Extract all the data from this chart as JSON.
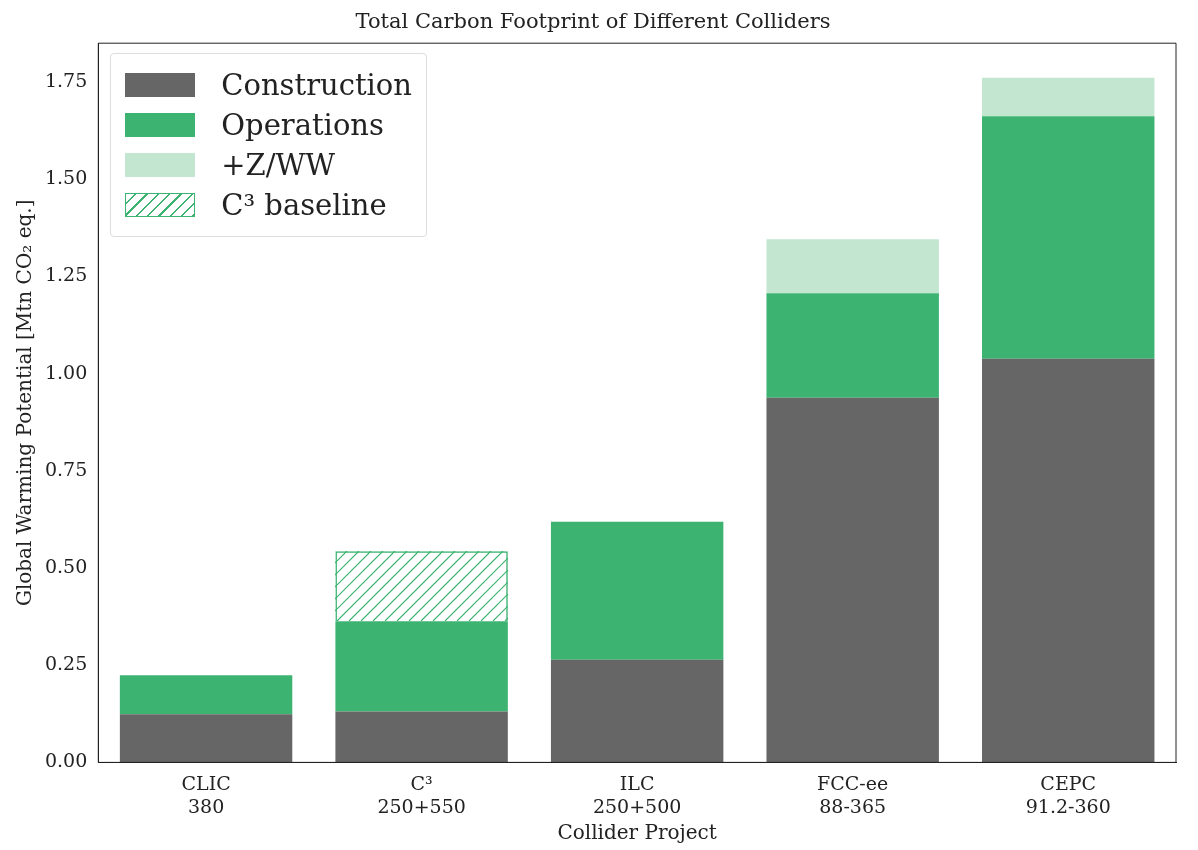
{
  "chart_data": {
    "type": "bar",
    "title": "Total Carbon Footprint of Different Colliders",
    "xlabel": "Collider Project",
    "ylabel": "Global Warming Potential [Mtn CO₂ eq.]",
    "categories": [
      "CLIC\n380",
      "C³\n250+550",
      "ILC\n250+500",
      "FCC-ee\n88-365",
      "CEPC\n91.2-360"
    ],
    "stacked": true,
    "series": [
      {
        "name": "Construction",
        "color": "#666666",
        "values": [
          0.124,
          0.131,
          0.264,
          0.938,
          1.038
        ]
      },
      {
        "name": "Operations",
        "color": "#3cb371",
        "values": [
          0.1,
          0.232,
          0.355,
          0.269,
          0.624
        ]
      },
      {
        "name": "+Z/WW",
        "color": "#c2e6d0",
        "values": [
          null,
          null,
          null,
          0.139,
          0.099
        ]
      },
      {
        "name": "C³ baseline",
        "color": "#3cb371",
        "values": [
          null,
          0.18,
          null,
          null,
          null
        ]
      }
    ],
    "ylim": [
      0,
      1.85
    ],
    "yticks": [
      {
        "value": 0,
        "label": "0.00"
      },
      {
        "value": 0.25,
        "label": "0.25"
      },
      {
        "value": 0.5,
        "label": "0.50"
      },
      {
        "value": 0.75,
        "label": "0.75"
      },
      {
        "value": 1,
        "label": "1.00"
      },
      {
        "value": 1.25,
        "label": "1.25"
      },
      {
        "value": 1.5,
        "label": "1.50"
      },
      {
        "value": 1.75,
        "label": "1.75"
      }
    ],
    "grid": false,
    "legend": "top left"
  }
}
